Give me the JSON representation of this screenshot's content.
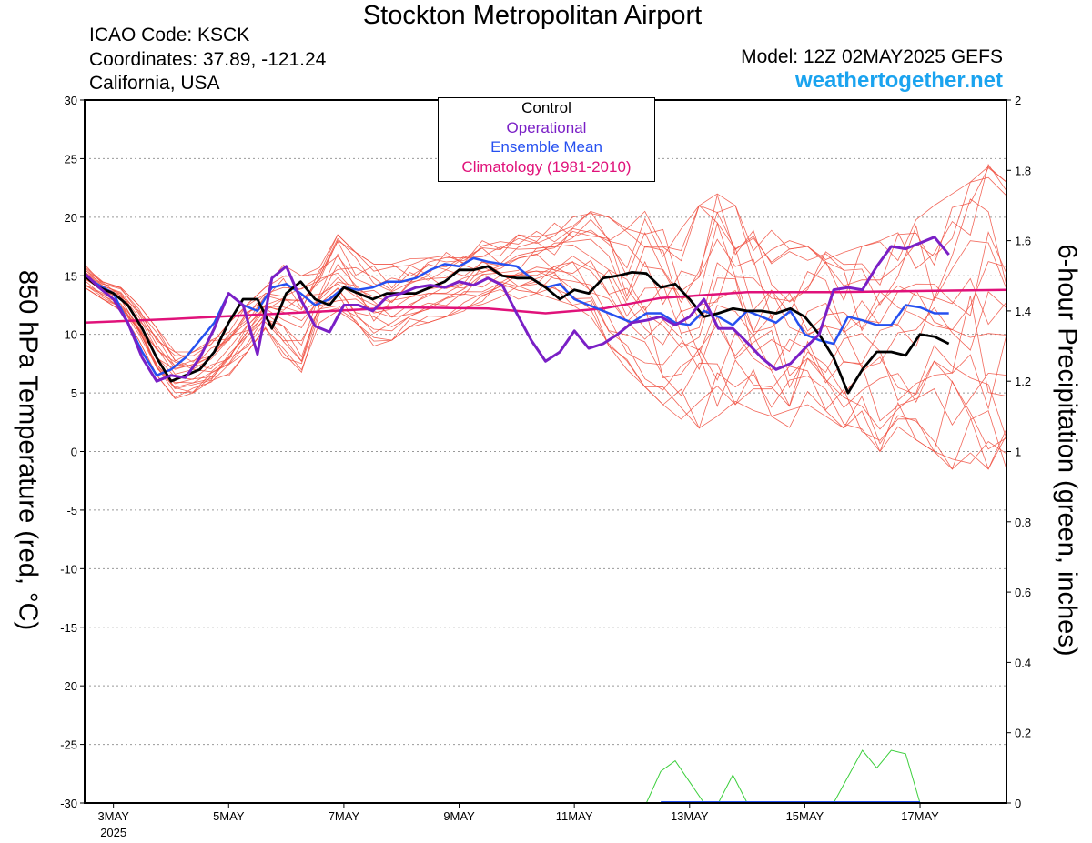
{
  "header": {
    "title": "Stockton Metropolitan Airport",
    "icao": "ICAO Code: KSCK",
    "coordinates": "Coordinates: 37.89, -121.24",
    "region": "California, USA",
    "model": "Model: 12Z 02MAY2025 GEFS",
    "site": "weathertogether.net"
  },
  "legend": {
    "control": "Control",
    "operational": "Operational",
    "ensemble_mean": "Ensemble Mean",
    "climatology": "Climatology (1981-2010)"
  },
  "colors": {
    "control": "#000000",
    "operational": "#7a1fc6",
    "ensemble_mean": "#2650f0",
    "climatology": "#e0127a",
    "members": "#f04b3c",
    "precip": "#3ccf3c",
    "site": "#1aa3ef"
  },
  "chart_data": {
    "type": "line",
    "ylabel_left": "850 hPa Temperature (red, °C)",
    "ylabel_right": "6-hour Precipitation (green, inches)",
    "ylim_left": [
      -30,
      30
    ],
    "ylim_right": [
      0,
      2
    ],
    "yticks_left": [
      "30",
      "25",
      "20",
      "15",
      "10",
      "5",
      "0",
      "-5",
      "-10",
      "-15",
      "-20",
      "-25",
      "-30"
    ],
    "yticks_right": [
      "2",
      "1.8",
      "1.6",
      "1.4",
      "1.2",
      "1",
      "0.8",
      "0.6",
      "0.4",
      "0.2",
      "0"
    ],
    "grid": true,
    "legend_position": "top-center",
    "x_start": "2025-05-02 12Z",
    "x_end": "2025-05-18 12Z",
    "x_ticks": [
      {
        "label": "3MAY",
        "sub": "2025",
        "time": "2025-05-03"
      },
      {
        "label": "5MAY",
        "sub": "",
        "time": "2025-05-05"
      },
      {
        "label": "7MAY",
        "sub": "",
        "time": "2025-05-07"
      },
      {
        "label": "9MAY",
        "sub": "",
        "time": "2025-05-09"
      },
      {
        "label": "11MAY",
        "sub": "",
        "time": "2025-05-11"
      },
      {
        "label": "13MAY",
        "sub": "",
        "time": "2025-05-13"
      },
      {
        "label": "15MAY",
        "sub": "",
        "time": "2025-05-15"
      },
      {
        "label": "17MAY",
        "sub": "",
        "time": "2025-05-17"
      }
    ],
    "series": [
      {
        "name": "Control",
        "key": "control",
        "points": [
          [
            "2025-05-02 12Z",
            15.0
          ],
          [
            "2025-05-02 18Z",
            14.0
          ],
          [
            "2025-05-03 00Z",
            13.5
          ],
          [
            "2025-05-03 06Z",
            12.5
          ],
          [
            "2025-05-03 12Z",
            10.5
          ],
          [
            "2025-05-03 18Z",
            8.0
          ],
          [
            "2025-05-04 00Z",
            6.0
          ],
          [
            "2025-05-04 06Z",
            6.5
          ],
          [
            "2025-05-04 12Z",
            7.0
          ],
          [
            "2025-05-04 18Z",
            8.5
          ],
          [
            "2025-05-05 00Z",
            11.0
          ],
          [
            "2025-05-05 06Z",
            13.0
          ],
          [
            "2025-05-05 12Z",
            13.0
          ],
          [
            "2025-05-05 18Z",
            10.5
          ],
          [
            "2025-05-06 00Z",
            13.5
          ],
          [
            "2025-05-06 06Z",
            14.5
          ],
          [
            "2025-05-06 12Z",
            13.0
          ],
          [
            "2025-05-06 18Z",
            12.5
          ],
          [
            "2025-05-07 00Z",
            14.0
          ],
          [
            "2025-05-07 06Z",
            13.5
          ],
          [
            "2025-05-07 12Z",
            13.0
          ],
          [
            "2025-05-07 18Z",
            13.5
          ],
          [
            "2025-05-08 00Z",
            13.5
          ],
          [
            "2025-05-08 06Z",
            13.5
          ],
          [
            "2025-05-08 12Z",
            14.0
          ],
          [
            "2025-05-08 18Z",
            14.5
          ],
          [
            "2025-05-09 00Z",
            15.5
          ],
          [
            "2025-05-09 06Z",
            15.5
          ],
          [
            "2025-05-09 12Z",
            15.8
          ],
          [
            "2025-05-09 18Z",
            15.0
          ],
          [
            "2025-05-10 00Z",
            14.8
          ],
          [
            "2025-05-10 06Z",
            14.8
          ],
          [
            "2025-05-10 12Z",
            14.0
          ],
          [
            "2025-05-10 18Z",
            13.0
          ],
          [
            "2025-05-11 00Z",
            13.8
          ],
          [
            "2025-05-11 06Z",
            13.5
          ],
          [
            "2025-05-11 12Z",
            14.8
          ],
          [
            "2025-05-11 18Z",
            15.0
          ],
          [
            "2025-05-12 00Z",
            15.3
          ],
          [
            "2025-05-12 06Z",
            15.2
          ],
          [
            "2025-05-12 12Z",
            14.0
          ],
          [
            "2025-05-12 18Z",
            14.3
          ],
          [
            "2025-05-13 00Z",
            13.0
          ],
          [
            "2025-05-13 06Z",
            11.5
          ],
          [
            "2025-05-13 12Z",
            11.8
          ],
          [
            "2025-05-13 18Z",
            12.2
          ],
          [
            "2025-05-14 00Z",
            12.0
          ],
          [
            "2025-05-14 06Z",
            12.0
          ],
          [
            "2025-05-14 12Z",
            11.8
          ],
          [
            "2025-05-14 18Z",
            12.2
          ],
          [
            "2025-05-15 00Z",
            11.5
          ],
          [
            "2025-05-15 06Z",
            10.0
          ],
          [
            "2025-05-15 12Z",
            8.0
          ],
          [
            "2025-05-15 18Z",
            5.0
          ],
          [
            "2025-05-16 00Z",
            7.0
          ],
          [
            "2025-05-16 06Z",
            8.5
          ],
          [
            "2025-05-16 12Z",
            8.5
          ],
          [
            "2025-05-16 18Z",
            8.2
          ],
          [
            "2025-05-17 00Z",
            10.0
          ],
          [
            "2025-05-17 06Z",
            9.8
          ],
          [
            "2025-05-17 12Z",
            9.2
          ]
        ]
      },
      {
        "name": "Operational",
        "key": "operational",
        "points": [
          [
            "2025-05-02 12Z",
            15.2
          ],
          [
            "2025-05-02 18Z",
            14.0
          ],
          [
            "2025-05-03 00Z",
            13.0
          ],
          [
            "2025-05-03 06Z",
            11.0
          ],
          [
            "2025-05-03 12Z",
            8.0
          ],
          [
            "2025-05-03 18Z",
            6.0
          ],
          [
            "2025-05-04 00Z",
            6.5
          ],
          [
            "2025-05-04 06Z",
            6.3
          ],
          [
            "2025-05-04 12Z",
            8.0
          ],
          [
            "2025-05-04 18Z",
            10.5
          ],
          [
            "2025-05-05 00Z",
            13.5
          ],
          [
            "2025-05-05 06Z",
            12.5
          ],
          [
            "2025-05-05 12Z",
            8.3
          ],
          [
            "2025-05-05 18Z",
            14.8
          ],
          [
            "2025-05-06 00Z",
            15.8
          ],
          [
            "2025-05-06 06Z",
            13.0
          ],
          [
            "2025-05-06 12Z",
            10.7
          ],
          [
            "2025-05-06 18Z",
            10.2
          ],
          [
            "2025-05-07 00Z",
            12.5
          ],
          [
            "2025-05-07 06Z",
            12.5
          ],
          [
            "2025-05-07 12Z",
            12.0
          ],
          [
            "2025-05-07 18Z",
            13.2
          ],
          [
            "2025-05-08 00Z",
            13.5
          ],
          [
            "2025-05-08 06Z",
            14.0
          ],
          [
            "2025-05-08 12Z",
            14.2
          ],
          [
            "2025-05-08 18Z",
            14.0
          ],
          [
            "2025-05-09 00Z",
            14.5
          ],
          [
            "2025-05-09 06Z",
            14.2
          ],
          [
            "2025-05-09 12Z",
            14.8
          ],
          [
            "2025-05-09 18Z",
            14.2
          ],
          [
            "2025-05-10 00Z",
            11.8
          ],
          [
            "2025-05-10 06Z",
            9.5
          ],
          [
            "2025-05-10 12Z",
            7.7
          ],
          [
            "2025-05-10 18Z",
            8.5
          ],
          [
            "2025-05-11 00Z",
            10.3
          ],
          [
            "2025-05-11 06Z",
            8.8
          ],
          [
            "2025-05-11 12Z",
            9.2
          ],
          [
            "2025-05-11 18Z",
            10.0
          ],
          [
            "2025-05-12 00Z",
            11.0
          ],
          [
            "2025-05-12 06Z",
            11.2
          ],
          [
            "2025-05-12 12Z",
            11.5
          ],
          [
            "2025-05-12 18Z",
            10.8
          ],
          [
            "2025-05-13 00Z",
            11.5
          ],
          [
            "2025-05-13 06Z",
            13.0
          ],
          [
            "2025-05-13 12Z",
            10.5
          ],
          [
            "2025-05-13 18Z",
            10.5
          ],
          [
            "2025-05-14 00Z",
            9.3
          ],
          [
            "2025-05-14 06Z",
            8.0
          ],
          [
            "2025-05-14 12Z",
            7.0
          ],
          [
            "2025-05-14 18Z",
            7.5
          ],
          [
            "2025-05-15 00Z",
            8.8
          ],
          [
            "2025-05-15 06Z",
            10.0
          ],
          [
            "2025-05-15 12Z",
            13.8
          ],
          [
            "2025-05-15 18Z",
            14.0
          ],
          [
            "2025-05-16 00Z",
            13.8
          ],
          [
            "2025-05-16 06Z",
            15.8
          ],
          [
            "2025-05-16 12Z",
            17.5
          ],
          [
            "2025-05-16 18Z",
            17.3
          ],
          [
            "2025-05-17 00Z",
            17.8
          ],
          [
            "2025-05-17 06Z",
            18.3
          ],
          [
            "2025-05-17 12Z",
            16.8
          ]
        ]
      },
      {
        "name": "Ensemble Mean",
        "key": "ensemble_mean",
        "points": [
          [
            "2025-05-02 12Z",
            15.0
          ],
          [
            "2025-05-02 18Z",
            14.2
          ],
          [
            "2025-05-03 00Z",
            13.5
          ],
          [
            "2025-05-03 06Z",
            11.0
          ],
          [
            "2025-05-03 12Z",
            8.5
          ],
          [
            "2025-05-03 18Z",
            6.5
          ],
          [
            "2025-05-04 00Z",
            7.0
          ],
          [
            "2025-05-04 06Z",
            8.0
          ],
          [
            "2025-05-04 12Z",
            9.5
          ],
          [
            "2025-05-04 18Z",
            11.0
          ],
          [
            "2025-05-05 00Z",
            13.5
          ],
          [
            "2025-05-05 06Z",
            12.5
          ],
          [
            "2025-05-05 12Z",
            12.0
          ],
          [
            "2025-05-05 18Z",
            14.0
          ],
          [
            "2025-05-06 00Z",
            14.3
          ],
          [
            "2025-05-06 06Z",
            13.5
          ],
          [
            "2025-05-06 12Z",
            12.5
          ],
          [
            "2025-05-06 18Z",
            13.0
          ],
          [
            "2025-05-07 00Z",
            14.0
          ],
          [
            "2025-05-07 06Z",
            13.8
          ],
          [
            "2025-05-07 12Z",
            14.0
          ],
          [
            "2025-05-07 18Z",
            14.5
          ],
          [
            "2025-05-08 00Z",
            14.5
          ],
          [
            "2025-05-08 06Z",
            14.8
          ],
          [
            "2025-05-08 12Z",
            15.5
          ],
          [
            "2025-05-08 18Z",
            16.0
          ],
          [
            "2025-05-09 00Z",
            15.8
          ],
          [
            "2025-05-09 06Z",
            16.5
          ],
          [
            "2025-05-09 12Z",
            16.2
          ],
          [
            "2025-05-09 18Z",
            16.0
          ],
          [
            "2025-05-10 00Z",
            15.8
          ],
          [
            "2025-05-10 06Z",
            14.8
          ],
          [
            "2025-05-10 12Z",
            14.0
          ],
          [
            "2025-05-10 18Z",
            14.3
          ],
          [
            "2025-05-11 00Z",
            13.0
          ],
          [
            "2025-05-11 06Z",
            12.5
          ],
          [
            "2025-05-11 12Z",
            12.0
          ],
          [
            "2025-05-11 18Z",
            11.5
          ],
          [
            "2025-05-12 00Z",
            11.0
          ],
          [
            "2025-05-12 06Z",
            11.8
          ],
          [
            "2025-05-12 12Z",
            11.8
          ],
          [
            "2025-05-12 18Z",
            11.0
          ],
          [
            "2025-05-13 00Z",
            10.8
          ],
          [
            "2025-05-13 06Z",
            12.0
          ],
          [
            "2025-05-13 12Z",
            11.5
          ],
          [
            "2025-05-13 18Z",
            10.8
          ],
          [
            "2025-05-14 00Z",
            12.0
          ],
          [
            "2025-05-14 06Z",
            11.5
          ],
          [
            "2025-05-14 12Z",
            11.0
          ],
          [
            "2025-05-14 18Z",
            12.0
          ],
          [
            "2025-05-15 00Z",
            10.0
          ],
          [
            "2025-05-15 06Z",
            9.5
          ],
          [
            "2025-05-15 12Z",
            9.2
          ],
          [
            "2025-05-15 18Z",
            11.5
          ],
          [
            "2025-05-16 00Z",
            11.2
          ],
          [
            "2025-05-16 06Z",
            10.8
          ],
          [
            "2025-05-16 12Z",
            10.8
          ],
          [
            "2025-05-16 18Z",
            12.5
          ],
          [
            "2025-05-17 00Z",
            12.3
          ],
          [
            "2025-05-17 06Z",
            11.8
          ],
          [
            "2025-05-17 12Z",
            11.8
          ]
        ]
      },
      {
        "name": "Climatology (1981-2010)",
        "key": "climatology",
        "points": [
          [
            "2025-05-02 12Z",
            11.0
          ],
          [
            "2025-05-04 00Z",
            11.3
          ],
          [
            "2025-05-06 00Z",
            11.8
          ],
          [
            "2025-05-08 00Z",
            12.3
          ],
          [
            "2025-05-09 12Z",
            12.2
          ],
          [
            "2025-05-10 12Z",
            11.8
          ],
          [
            "2025-05-11 12Z",
            12.2
          ],
          [
            "2025-05-12 12Z",
            13.1
          ],
          [
            "2025-05-14 00Z",
            13.6
          ],
          [
            "2025-05-15 12Z",
            13.6
          ],
          [
            "2025-05-18 12Z",
            13.8
          ]
        ]
      }
    ],
    "member_envelope": {
      "upper": [
        16,
        14.5,
        14,
        12.5,
        10.5,
        8.5,
        8.5,
        9.5,
        11,
        13,
        14,
        16,
        15,
        16,
        18.5,
        17,
        16,
        16,
        16.5,
        16.5,
        17,
        17,
        18,
        18,
        18.5,
        19,
        19.5,
        20,
        20.5,
        20,
        19,
        20.5,
        19.5,
        19,
        21,
        22,
        21,
        20,
        19,
        18,
        17.5,
        18,
        17,
        17.5,
        18,
        19,
        20,
        21,
        22,
        23,
        24.5,
        23
      ],
      "lower": [
        14,
        13,
        12,
        9.5,
        6.5,
        4.5,
        5,
        5.5,
        6.5,
        8.5,
        10.5,
        8,
        6.5,
        11,
        12,
        11,
        9,
        9.5,
        10.5,
        11,
        11.5,
        12,
        12.5,
        13,
        13,
        13.5,
        13,
        12.5,
        11.5,
        9,
        7,
        5.5,
        4,
        2.5,
        2,
        3,
        4,
        3.5,
        3,
        2,
        4,
        3,
        2,
        1,
        0,
        -0.5,
        1,
        0,
        -1.5,
        -1,
        -1.5,
        -1.5
      ]
    },
    "precip_peak_in": 0.15,
    "precip_peaks": [
      [
        "2025-05-12 06Z",
        0.0
      ],
      [
        "2025-05-12 12Z",
        0.09
      ],
      [
        "2025-05-12 18Z",
        0.12
      ],
      [
        "2025-05-13 00Z",
        0.06
      ],
      [
        "2025-05-13 06Z",
        0.0
      ],
      [
        "2025-05-13 12Z",
        0.0
      ],
      [
        "2025-05-13 18Z",
        0.08
      ],
      [
        "2025-05-14 00Z",
        0.0
      ],
      [
        "2025-05-15 12Z",
        0.0
      ],
      [
        "2025-05-16 00Z",
        0.15
      ],
      [
        "2025-05-16 06Z",
        0.1
      ],
      [
        "2025-05-16 12Z",
        0.15
      ],
      [
        "2025-05-16 18Z",
        0.14
      ],
      [
        "2025-05-17 00Z",
        0.0
      ]
    ]
  }
}
